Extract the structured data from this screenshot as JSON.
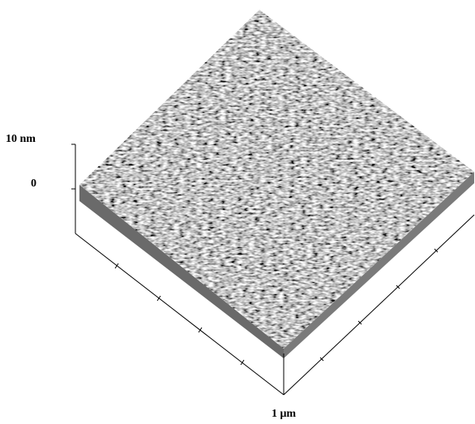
{
  "axis_labels": {
    "z_max": "10 nm",
    "z_zero": "0",
    "xy_scale": "1 μm"
  }
}
